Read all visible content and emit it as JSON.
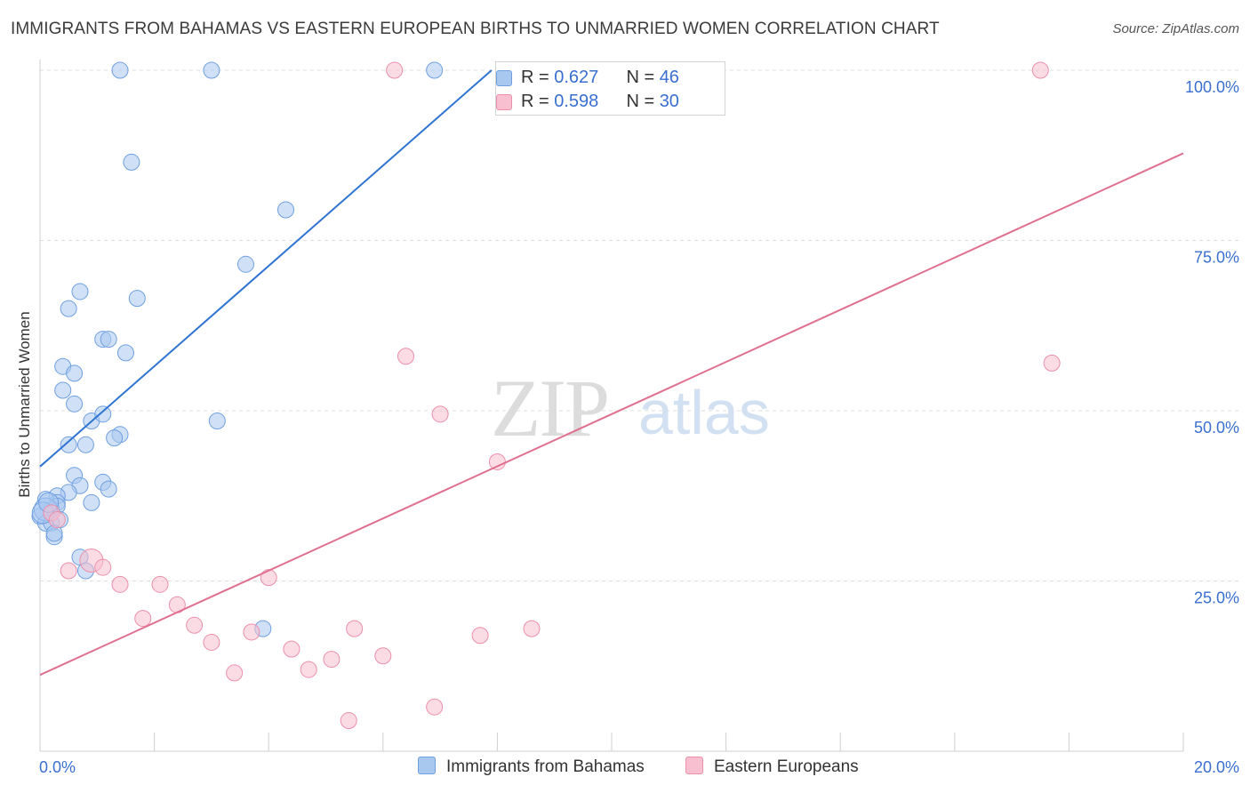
{
  "title": "IMMIGRANTS FROM BAHAMAS VS EASTERN EUROPEAN BIRTHS TO UNMARRIED WOMEN CORRELATION CHART",
  "source": "Source: ZipAtlas.com",
  "watermark": {
    "zip": "ZIP",
    "atlas": "atlas"
  },
  "colors": {
    "blue_fill": "#a9c8f0",
    "blue_stroke": "#6f9fe0",
    "blue_line": "#2f74d0",
    "pink_fill": "#f7bfd0",
    "pink_stroke": "#ec8fab",
    "pink_line": "#e0708f",
    "grid": "#dddddd",
    "tick_label": "#3a6fd0"
  },
  "legend_stats": [
    {
      "r_label": "R = ",
      "r_value": "0.627",
      "n_label": "N = ",
      "n_value": "46"
    },
    {
      "r_label": "R = ",
      "r_value": "0.598",
      "n_label": "N = ",
      "n_value": "30"
    }
  ],
  "bottom_legend": [
    "Immigrants from Bahamas",
    "Eastern Europeans"
  ],
  "chart_data": {
    "type": "scatter",
    "title": "IMMIGRANTS FROM BAHAMAS VS EASTERN EUROPEAN BIRTHS TO UNMARRIED WOMEN CORRELATION CHART",
    "xlabel": "",
    "ylabel": "Births to Unmarried Women",
    "xlim": [
      0,
      20
    ],
    "ylim": [
      0,
      100
    ],
    "x_tick_labels": [
      "0.0%",
      "20.0%"
    ],
    "y_ticks": [
      25,
      50,
      75,
      100
    ],
    "y_tick_labels": [
      "25.0%",
      "50.0%",
      "75.0%",
      "100.0%"
    ],
    "grid": true,
    "legend_placement": "top-center",
    "series": [
      {
        "name": "Immigrants from Bahamas",
        "r": 0.627,
        "n": 46,
        "trend": {
          "x": [
            0,
            7.9
          ],
          "y": [
            41.8,
            100
          ]
        },
        "x": [
          1.4,
          3.0,
          6.9,
          1.6,
          4.3,
          3.6,
          0.7,
          0.5,
          1.7,
          1.1,
          1.2,
          1.5,
          0.4,
          0.6,
          0.4,
          0.6,
          0.9,
          1.1,
          0.8,
          0.5,
          1.4,
          1.3,
          3.1,
          0.6,
          1.1,
          0.7,
          1.2,
          0.5,
          0.3,
          0.9,
          0.3,
          0.2,
          0.1,
          0.3,
          0.0,
          0.1,
          0.2,
          0.25,
          0.7,
          0.8,
          3.9,
          0.1,
          0.05,
          0.15,
          0.35,
          0.25
        ],
        "y": [
          100,
          100,
          100,
          86.5,
          79.5,
          71.5,
          67.5,
          65,
          66.5,
          60.5,
          60.5,
          58.5,
          56.5,
          55.5,
          53,
          51,
          48.5,
          49.5,
          45,
          45,
          46.5,
          46,
          48.5,
          40.5,
          39.5,
          39,
          38.5,
          38,
          37.5,
          36.5,
          36.5,
          35.5,
          37,
          36,
          34.5,
          33.5,
          33.5,
          31.5,
          28.5,
          26.5,
          18,
          35.5,
          35,
          36.5,
          34,
          32
        ],
        "sizes": [
          9,
          9,
          9,
          9,
          9,
          9,
          9,
          9,
          9,
          9,
          9,
          9,
          9,
          9,
          9,
          9,
          9,
          9,
          9,
          9,
          9,
          9,
          9,
          9,
          9,
          9,
          9,
          9,
          9,
          9,
          9,
          9,
          9,
          9,
          9,
          9,
          9,
          9,
          9,
          9,
          9,
          13,
          12,
          11,
          9,
          9
        ]
      },
      {
        "name": "Eastern Europeans",
        "r": 0.598,
        "n": 30,
        "trend": {
          "x": [
            0,
            20
          ],
          "y": [
            11.2,
            87.8
          ]
        },
        "x": [
          9.3,
          17.5,
          6.2,
          17.7,
          6.4,
          8.0,
          7.0,
          0.9,
          0.2,
          0.3,
          1.1,
          1.4,
          2.1,
          2.4,
          4.0,
          1.8,
          2.7,
          3.0,
          3.7,
          5.5,
          7.7,
          8.6,
          3.4,
          4.7,
          5.1,
          6.0,
          4.4,
          5.4,
          6.9,
          0.5
        ],
        "y": [
          100,
          100,
          100,
          57,
          58,
          42.5,
          49.5,
          28,
          35,
          34,
          27,
          24.5,
          24.5,
          21.5,
          25.5,
          19.5,
          18.5,
          16,
          17.5,
          18,
          17,
          18,
          11.5,
          12,
          13.5,
          14,
          15,
          4.5,
          6.5,
          26.5
        ],
        "sizes": [
          9,
          9,
          9,
          9,
          9,
          9,
          9,
          13,
          9,
          9,
          9,
          9,
          9,
          9,
          9,
          9,
          9,
          9,
          9,
          9,
          9,
          9,
          9,
          9,
          9,
          9,
          9,
          9,
          9,
          9
        ]
      }
    ]
  }
}
